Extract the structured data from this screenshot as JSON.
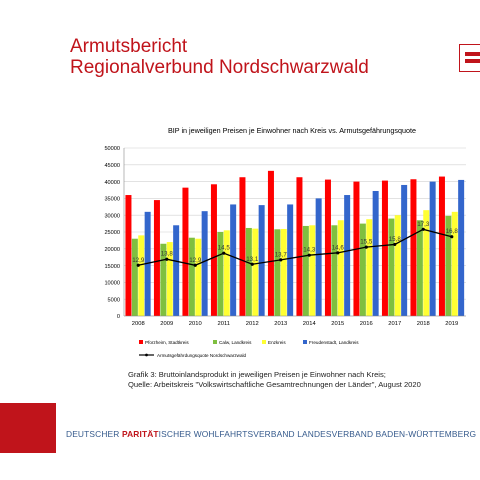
{
  "header": {
    "title_line1": "Armutsbericht",
    "title_line2": "Regionalverbund Nordschwarzwald"
  },
  "caption": {
    "line1": "Grafik 3: Bruttoinlandsprodukt in jeweiligen Preisen je Einwohner nach Kreis;",
    "line2": "Quelle: Arbeitskreis \"Volkswirtschaftliche Gesamtrechnungen der Länder\", August 2020"
  },
  "footer": {
    "part1": "DEUTSCHER ",
    "part2": "PARITÄT",
    "part3": "ISCHER WOHLFAHRTSVERBAND LANDESVERBAND BADEN-WÜRTTEMBERG"
  },
  "colors": {
    "brand_red": "#c0141b",
    "pforzheim": "#ff0000",
    "calw": "#7fbf3f",
    "enzkreis": "#ffff33",
    "freudenstadt": "#3366cc",
    "line": "#000000"
  },
  "chart_data": {
    "type": "bar",
    "title": "BIP in jeweiligen Preisen je Einwohner nach Kreis vs. Armutsgefährungsquote",
    "categories": [
      "2008",
      "2009",
      "2010",
      "2011",
      "2012",
      "2013",
      "2014",
      "2015",
      "2016",
      "2017",
      "2018",
      "2019"
    ],
    "ylim": [
      0,
      50000
    ],
    "yticks": [
      0,
      5000,
      10000,
      15000,
      20000,
      25000,
      30000,
      35000,
      40000,
      45000,
      50000
    ],
    "grid": true,
    "legend_position": "bottom",
    "series": [
      {
        "name": "Pforzheim, Stadtkreis",
        "color": "#ff0000",
        "values": [
          36000,
          34500,
          38200,
          39200,
          41300,
          43200,
          41300,
          40600,
          40000,
          40300,
          40700,
          41500
        ]
      },
      {
        "name": "Calw, Landkreis",
        "color": "#7fbf3f",
        "values": [
          23000,
          21500,
          23300,
          25000,
          26200,
          25800,
          26800,
          27000,
          27500,
          29000,
          28500,
          29800
        ]
      },
      {
        "name": "Enzkreis",
        "color": "#ffff33",
        "values": [
          24000,
          22000,
          23000,
          25500,
          26000,
          25900,
          27000,
          28500,
          28800,
          30000,
          31500,
          31000
        ]
      },
      {
        "name": "Freudenstadt, Landkreis",
        "color": "#3366cc",
        "values": [
          31000,
          27000,
          31200,
          33200,
          33000,
          33200,
          35000,
          36000,
          37200,
          39000,
          40000,
          40500
        ]
      }
    ],
    "line_series": {
      "name": "Armutsgefährdungsquote Nordschwarzwald",
      "color": "#000000",
      "values": [
        12.9,
        13.8,
        12.9,
        14.5,
        13.1,
        13.7,
        14.3,
        14.6,
        15.5,
        15.8,
        17.3,
        16.8
      ],
      "labels": [
        "12,9",
        "13,8",
        "12,9",
        "14,5",
        "13,1",
        "13,7",
        "14,3",
        "14,6",
        "15,5",
        "15,8",
        "17,3",
        "16,8"
      ],
      "plotted_on_bar_axis_equivalent": [
        15100,
        16900,
        15100,
        18700,
        15400,
        16700,
        18100,
        18800,
        20500,
        21300,
        25800,
        23600
      ]
    }
  }
}
